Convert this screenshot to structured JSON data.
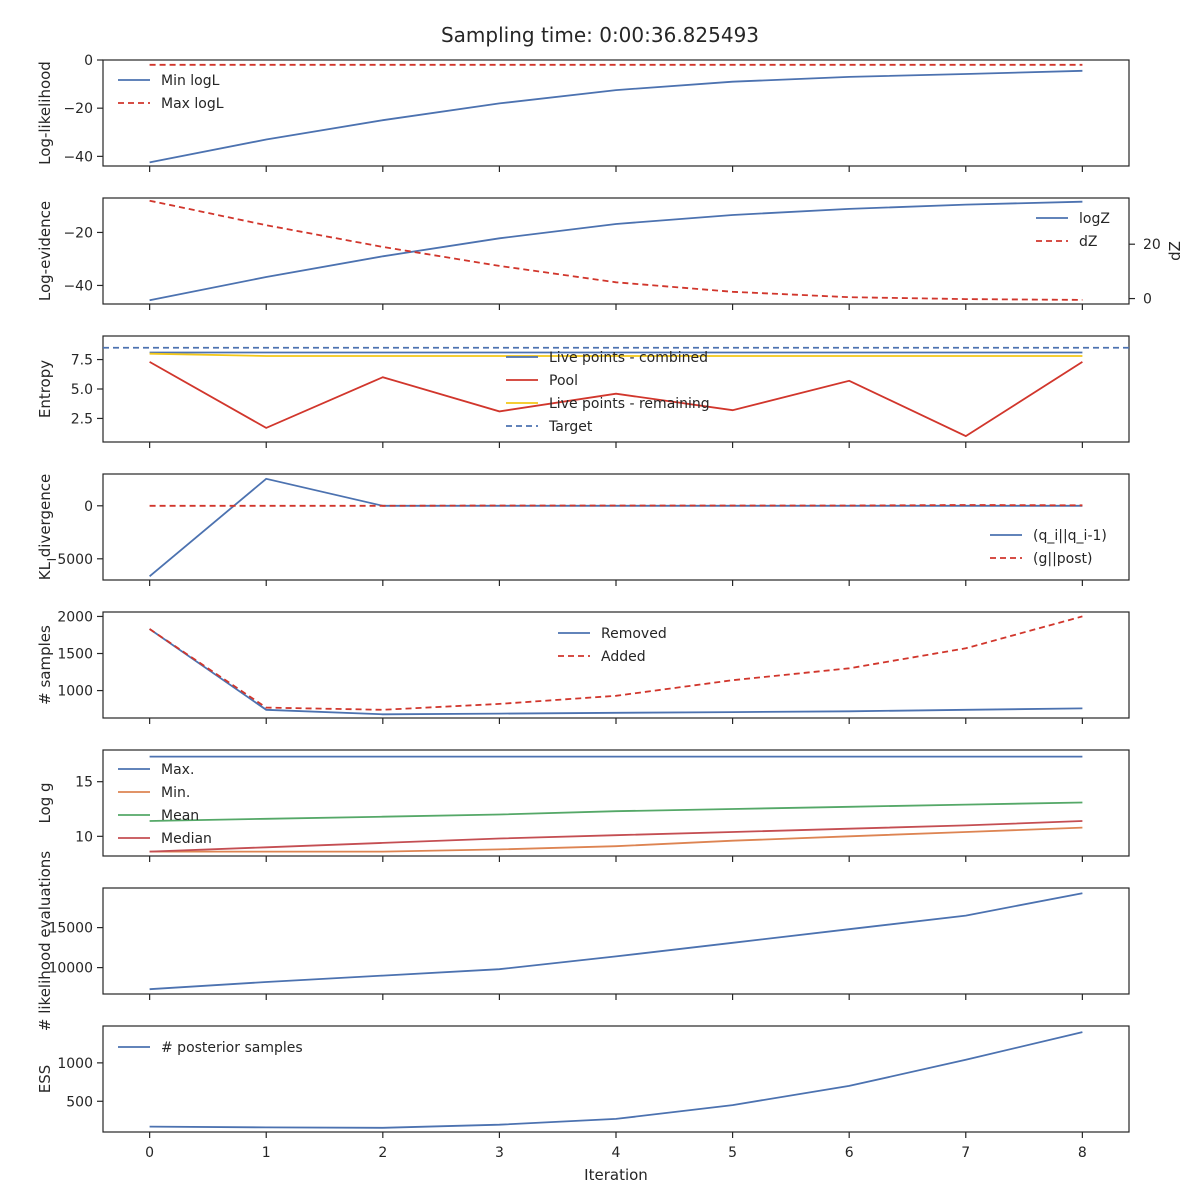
{
  "title": "Sampling time: 0:00:36.825493",
  "colors": {
    "blue": "#4c72b0",
    "red": "#d1362c",
    "orange": "#dd8452",
    "green": "#55a868",
    "crimson": "#c44e52",
    "yellow": "#f2c718"
  },
  "chart_data": [
    {
      "type": "line",
      "ylabel": "Log-likelihood",
      "ylim": [
        -44,
        0
      ],
      "yticks": [
        0,
        -20,
        -40
      ],
      "yticklabels": [
        "0",
        "−20",
        "−40"
      ],
      "x": [
        0,
        1,
        2,
        3,
        4,
        5,
        6,
        7,
        8
      ],
      "legend": "top-left",
      "series": [
        {
          "name": "Min logL",
          "color": "blue",
          "dashed": false,
          "values": [
            -42.5,
            -33,
            -25,
            -18,
            -12.5,
            -9,
            -7,
            -5.8,
            -4.5
          ]
        },
        {
          "name": "Max logL",
          "color": "red",
          "dashed": true,
          "values": [
            -2,
            -2,
            -2,
            -2,
            -2,
            -2,
            -2,
            -2,
            -2
          ]
        }
      ]
    },
    {
      "type": "line",
      "ylabel": "Log-evidence",
      "ylim": [
        -47,
        -7
      ],
      "yticks": [
        -20,
        -40
      ],
      "yticklabels": [
        "−20",
        "−40"
      ],
      "y2label": "dZ",
      "y2lim": [
        -2,
        37
      ],
      "y2ticks": [
        20,
        0
      ],
      "y2ticklabels": [
        "20",
        "0"
      ],
      "x": [
        0,
        1,
        2,
        3,
        4,
        5,
        6,
        7,
        8
      ],
      "legend": "right",
      "series": [
        {
          "name": "logZ",
          "color": "blue",
          "dashed": false,
          "axis": "left",
          "values": [
            -45.6,
            -36.8,
            -29,
            -22.2,
            -16.8,
            -13.4,
            -11.1,
            -9.5,
            -8.4
          ]
        },
        {
          "name": "dZ",
          "color": "red",
          "dashed": true,
          "axis": "right",
          "values": [
            36,
            27,
            19,
            12,
            6,
            2.5,
            0.5,
            -0.2,
            -0.5
          ]
        }
      ]
    },
    {
      "type": "line",
      "ylabel": "Entropy",
      "ylim": [
        0.5,
        9.5
      ],
      "yticks": [
        7.5,
        5.0,
        2.5
      ],
      "yticklabels": [
        "7.5",
        "5.0",
        "2.5"
      ],
      "x": [
        0,
        1,
        2,
        3,
        4,
        5,
        6,
        7,
        8
      ],
      "legend": "center",
      "series": [
        {
          "name": "Live points - combined",
          "color": "blue",
          "dashed": false,
          "values": [
            8.1,
            8.1,
            8.1,
            8.1,
            8.1,
            8.1,
            8.1,
            8.1,
            8.1
          ]
        },
        {
          "name": "Pool",
          "color": "red",
          "dashed": false,
          "values": [
            7.3,
            1.7,
            6.0,
            3.1,
            4.6,
            3.2,
            5.7,
            1.0,
            7.3
          ]
        },
        {
          "name": "Live points - remaining",
          "color": "yellow",
          "dashed": false,
          "values": [
            8.0,
            7.8,
            7.8,
            7.8,
            7.8,
            7.8,
            7.8,
            7.8,
            7.8
          ]
        },
        {
          "name": "Target",
          "color": "blue",
          "dashed": true,
          "hline": 8.5
        }
      ]
    },
    {
      "type": "line",
      "ylabel": "KL divergence",
      "ylim": [
        -7000,
        3000
      ],
      "yticks": [
        0,
        -5000
      ],
      "yticklabels": [
        "0",
        "−5000"
      ],
      "x": [
        0,
        1,
        2,
        3,
        4,
        5,
        6,
        7,
        8
      ],
      "legend": "bottom-right",
      "series": [
        {
          "name": "(q_i||q_i-1)",
          "color": "blue",
          "dashed": false,
          "values": [
            -6650,
            2550,
            0,
            0,
            0,
            0,
            0,
            0,
            0
          ]
        },
        {
          "name": "(g||post)",
          "color": "red",
          "dashed": true,
          "values": [
            0,
            0,
            0,
            30,
            30,
            30,
            30,
            80,
            50
          ]
        }
      ]
    },
    {
      "type": "line",
      "ylabel": "# samples",
      "ylim": [
        630,
        2060
      ],
      "yticks": [
        2000,
        1500,
        1000
      ],
      "yticklabels": [
        "2000",
        "1500",
        "1000"
      ],
      "x": [
        0,
        1,
        2,
        3,
        4,
        5,
        6,
        7,
        8
      ],
      "legend": "top-center",
      "series": [
        {
          "name": "Removed",
          "color": "blue",
          "dashed": false,
          "values": [
            1830,
            740,
            680,
            690,
            700,
            710,
            720,
            740,
            760
          ]
        },
        {
          "name": "Added",
          "color": "red",
          "dashed": true,
          "values": [
            1830,
            770,
            740,
            820,
            930,
            1140,
            1300,
            1570,
            2000
          ]
        }
      ]
    },
    {
      "type": "line",
      "ylabel": "Log g",
      "ylim": [
        8.2,
        17.9
      ],
      "yticks": [
        15,
        10
      ],
      "yticklabels": [
        "15",
        "10"
      ],
      "x": [
        0,
        1,
        2,
        3,
        4,
        5,
        6,
        7,
        8
      ],
      "legend": "top-left",
      "series": [
        {
          "name": "Max.",
          "color": "blue",
          "dashed": false,
          "values": [
            17.3,
            17.3,
            17.3,
            17.3,
            17.3,
            17.3,
            17.3,
            17.3,
            17.3
          ]
        },
        {
          "name": "Min.",
          "color": "orange",
          "dashed": false,
          "values": [
            8.6,
            8.6,
            8.6,
            8.8,
            9.1,
            9.6,
            10.0,
            10.4,
            10.8
          ]
        },
        {
          "name": "Mean",
          "color": "green",
          "dashed": false,
          "values": [
            11.4,
            11.6,
            11.8,
            12.0,
            12.3,
            12.5,
            12.7,
            12.9,
            13.1
          ]
        },
        {
          "name": "Median",
          "color": "crimson",
          "dashed": false,
          "values": [
            8.6,
            9.0,
            9.4,
            9.8,
            10.1,
            10.4,
            10.7,
            11.0,
            11.4
          ]
        }
      ]
    },
    {
      "type": "line",
      "ylabel": "# likelihood evaluations",
      "ylim": [
        6700,
        19950
      ],
      "yticks": [
        15000,
        10000
      ],
      "yticklabels": [
        "15000",
        "10000"
      ],
      "x": [
        0,
        1,
        2,
        3,
        4,
        5,
        6,
        7,
        8
      ],
      "legend": "none",
      "series": [
        {
          "name": "",
          "color": "blue",
          "dashed": false,
          "values": [
            7300,
            8200,
            9000,
            9800,
            11400,
            13100,
            14800,
            16500,
            19300
          ]
        }
      ]
    },
    {
      "type": "line",
      "ylabel": "ESS",
      "ylim": [
        100,
        1480
      ],
      "yticks": [
        1000,
        500
      ],
      "yticklabels": [
        "1000",
        "500"
      ],
      "xlabel": "Iteration",
      "x": [
        0,
        1,
        2,
        3,
        4,
        5,
        6,
        7,
        8
      ],
      "xticklabels": [
        "0",
        "1",
        "2",
        "3",
        "4",
        "5",
        "6",
        "7",
        "8"
      ],
      "legend": "top-left",
      "series": [
        {
          "name": "# posterior samples",
          "color": "blue",
          "dashed": false,
          "values": [
            170,
            160,
            155,
            195,
            270,
            450,
            700,
            1040,
            1400
          ]
        }
      ]
    }
  ]
}
